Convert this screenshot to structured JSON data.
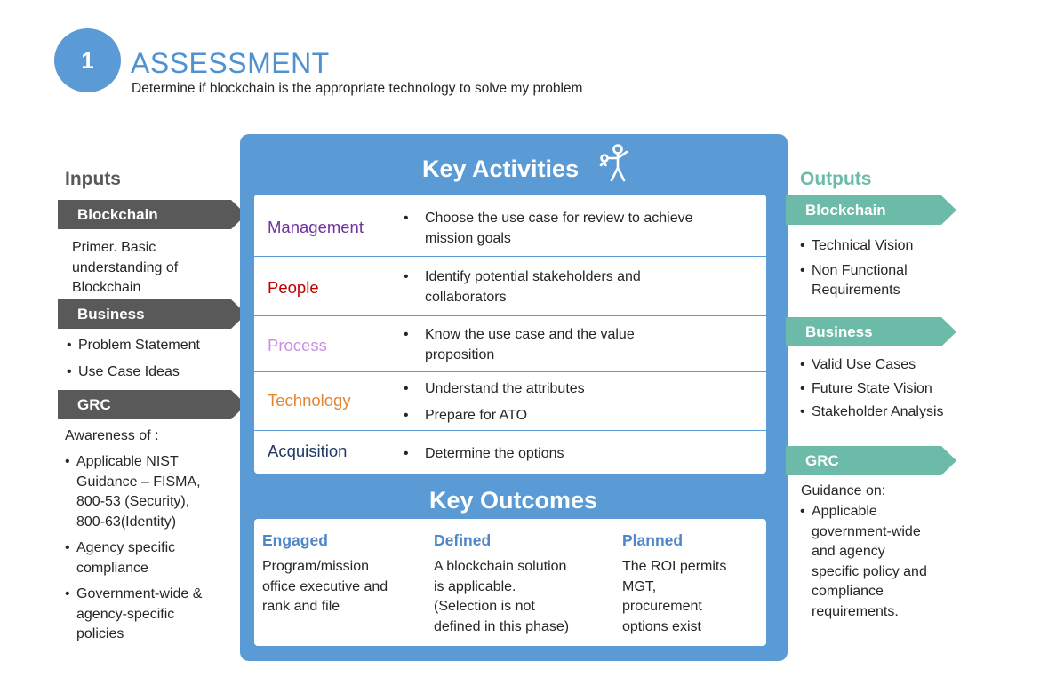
{
  "header": {
    "step_number": "1",
    "title": "ASSESSMENT",
    "subtitle": "Determine if blockchain is the appropriate technology to solve my problem"
  },
  "inputs": {
    "heading": "Inputs",
    "sections": [
      {
        "label": "Blockchain",
        "lines": [
          "Primer.  Basic",
          "understanding of",
          "Blockchain"
        ]
      },
      {
        "label": "Business",
        "items": [
          "Problem Statement",
          "Use Case Ideas"
        ]
      },
      {
        "label": "GRC",
        "intro": "Awareness of :",
        "items": [
          [
            "Applicable NIST",
            "Guidance – FISMA,",
            "800-53 (Security),",
            "800-63(Identity)"
          ],
          [
            "Agency specific",
            "compliance"
          ],
          [
            "Government-wide &",
            "agency-specific",
            "policies"
          ]
        ]
      }
    ]
  },
  "key_activities": {
    "title": "Key Activities",
    "icon": "person-key-icon",
    "rows": [
      {
        "category": "Management",
        "color": "#7030a0",
        "items": [
          [
            "Choose the use case for review to achieve",
            "mission goals"
          ]
        ]
      },
      {
        "category": "People",
        "color": "#c00000",
        "items": [
          [
            "Identify potential stakeholders and",
            "collaborators"
          ]
        ]
      },
      {
        "category": "Process",
        "color": "#cc8fe0",
        "items": [
          [
            "Know the use case and the value",
            "proposition"
          ]
        ]
      },
      {
        "category": "Technology",
        "color": "#e3862f",
        "items": [
          [
            "Understand the attributes"
          ],
          [
            "Prepare for ATO"
          ]
        ]
      },
      {
        "category": "Acquisition",
        "color": "#1f3864",
        "items": [
          [
            "Determine the options"
          ]
        ]
      }
    ]
  },
  "key_outcomes": {
    "title": "Key Outcomes",
    "columns": [
      {
        "heading": "Engaged",
        "lines": [
          "Program/mission",
          "office executive and",
          "rank and file"
        ]
      },
      {
        "heading": "Defined",
        "lines": [
          "A blockchain solution",
          "is applicable.",
          "(Selection is not",
          "defined in this phase)"
        ]
      },
      {
        "heading": "Planned",
        "lines": [
          "The ROI permits",
          "MGT,",
          "procurement",
          "options exist"
        ]
      }
    ]
  },
  "outputs": {
    "heading": "Outputs",
    "sections": [
      {
        "label": "Blockchain",
        "items": [
          [
            "Technical Vision"
          ],
          [
            "Non Functional",
            "Requirements"
          ]
        ]
      },
      {
        "label": "Business",
        "items": [
          [
            "Valid Use Cases"
          ],
          [
            "Future State Vision"
          ],
          [
            "Stakeholder Analysis"
          ]
        ]
      },
      {
        "label": "GRC",
        "intro": "Guidance on:",
        "items": [
          [
            "Applicable",
            "government-wide",
            "and agency",
            "specific policy and",
            "compliance",
            "requirements."
          ]
        ]
      }
    ]
  },
  "colors": {
    "accent_blue": "#5b9bd5",
    "input_tab": "#595959",
    "output_tab": "#6bbba8",
    "outcome_heading": "#4f86c6"
  }
}
